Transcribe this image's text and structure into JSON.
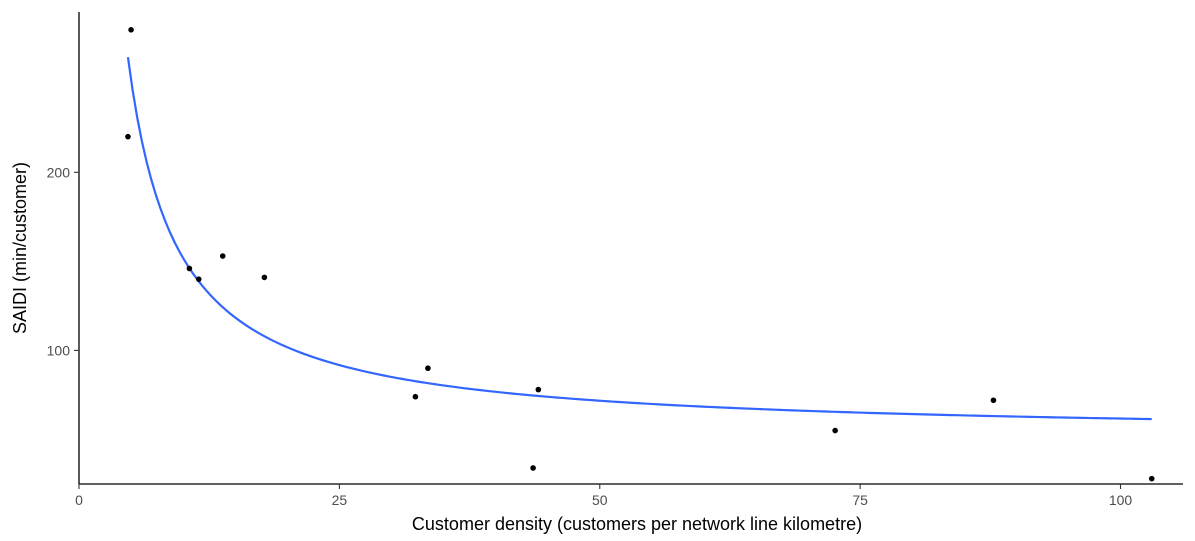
{
  "chart_data": {
    "type": "scatter",
    "title": "",
    "xlabel": "Customer density (customers per network line kilometre)",
    "ylabel": "SAIDI (min/customer)",
    "xlim": [
      0,
      106
    ],
    "ylim": [
      25,
      290
    ],
    "x_ticks": [
      0,
      25,
      50,
      75,
      100
    ],
    "y_ticks": [
      100,
      200
    ],
    "grid": false,
    "legend": "none",
    "point_color": "#000000",
    "series": [
      {
        "points": [
          {
            "x": 5.0,
            "y": 280
          },
          {
            "x": 4.7,
            "y": 220
          },
          {
            "x": 10.6,
            "y": 146
          },
          {
            "x": 11.5,
            "y": 140
          },
          {
            "x": 13.8,
            "y": 153
          },
          {
            "x": 17.8,
            "y": 141
          },
          {
            "x": 32.3,
            "y": 74
          },
          {
            "x": 33.5,
            "y": 90
          },
          {
            "x": 43.6,
            "y": 34
          },
          {
            "x": 44.1,
            "y": 78
          },
          {
            "x": 72.6,
            "y": 55
          },
          {
            "x": 87.8,
            "y": 72
          },
          {
            "x": 103.0,
            "y": 28
          }
        ]
      }
    ],
    "fit_line": {
      "color": "#3366FF",
      "x_range": [
        4.7,
        103.0
      ],
      "model": "y = a + b / x",
      "a": 51.74,
      "b": 1000.6
    }
  }
}
